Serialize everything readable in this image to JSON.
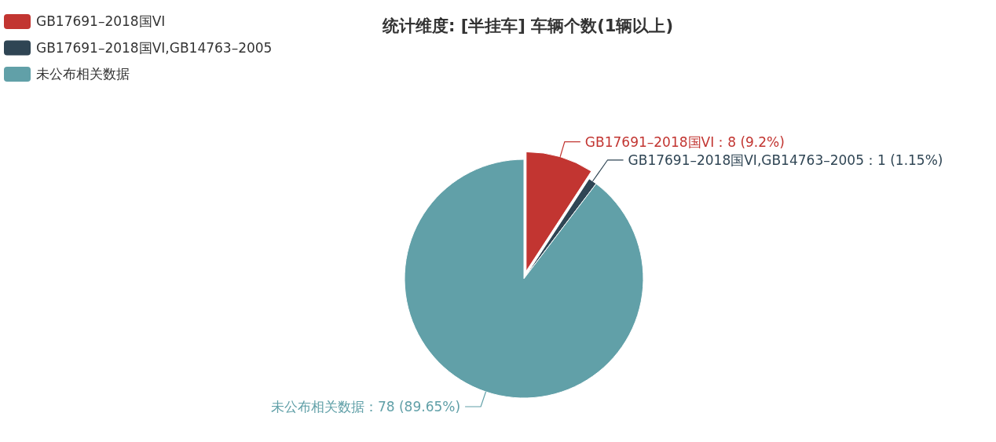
{
  "chart_data": {
    "type": "pie",
    "title": "统计维度: [半挂车] 车辆个数(1辆以上)",
    "categories": [
      "GB17691–2018国VI",
      "GB17691–2018国VI,GB14763–2005",
      "未公布相关数据"
    ],
    "values": [
      8,
      1,
      78
    ],
    "colors": [
      "#c23531",
      "#2f4554",
      "#61a0a8"
    ],
    "value_labels": [
      "GB17691–2018国VI：8 (9.2%)",
      "GB17691–2018国VI,GB14763–2005：1 (1.15%)",
      "未公布相关数据：78 (89.65%)"
    ],
    "legend": "top left"
  }
}
